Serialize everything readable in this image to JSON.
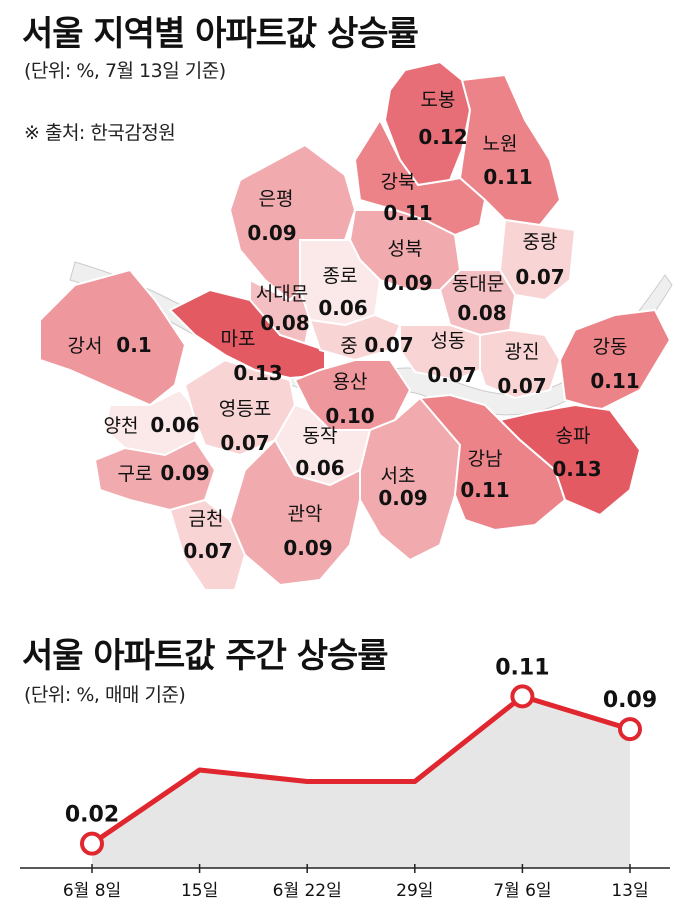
{
  "map_section": {
    "title": "서울 지역별 아파트값 상승률",
    "unit_note": "(단위: %, 7월 13일 기준)",
    "source_note": "※ 출처: 한국감정원"
  },
  "line_section": {
    "title": "서울 아파트값 주간 상승률",
    "unit_note": "(단위: %, 매매 기준)"
  },
  "colors": {
    "line": "#e0262f",
    "area": "#e6e6e6",
    "river": "#eeeeee",
    "map_high": "#e45a63",
    "map_low": "#fbe8e8"
  },
  "chart_data": [
    {
      "type": "heatmap",
      "title": "서울 지역별 아파트값 상승률",
      "unit": "%",
      "districts": [
        {
          "name": "도봉",
          "value": 0.12
        },
        {
          "name": "노원",
          "value": 0.11
        },
        {
          "name": "강북",
          "value": 0.11
        },
        {
          "name": "은평",
          "value": 0.09
        },
        {
          "name": "성북",
          "value": 0.09
        },
        {
          "name": "중랑",
          "value": 0.07
        },
        {
          "name": "종로",
          "value": 0.06
        },
        {
          "name": "동대문",
          "value": 0.08
        },
        {
          "name": "서대문",
          "value": 0.08
        },
        {
          "name": "강서",
          "value": 0.1
        },
        {
          "name": "마포",
          "value": 0.13
        },
        {
          "name": "중",
          "value": 0.07
        },
        {
          "name": "성동",
          "value": 0.07
        },
        {
          "name": "광진",
          "value": 0.07
        },
        {
          "name": "강동",
          "value": 0.11
        },
        {
          "name": "용산",
          "value": 0.1
        },
        {
          "name": "양천",
          "value": 0.06
        },
        {
          "name": "영등포",
          "value": 0.07
        },
        {
          "name": "동작",
          "value": 0.06
        },
        {
          "name": "구로",
          "value": 0.09
        },
        {
          "name": "서초",
          "value": 0.09
        },
        {
          "name": "강남",
          "value": 0.11
        },
        {
          "name": "송파",
          "value": 0.13
        },
        {
          "name": "금천",
          "value": 0.07
        },
        {
          "name": "관악",
          "value": 0.09
        }
      ]
    },
    {
      "type": "line",
      "title": "서울 아파트값 주간 상승률",
      "categories": [
        "6월 8일",
        "15일",
        "6월 22일",
        "29일",
        "7월 6일",
        "13일"
      ],
      "series": [
        {
          "values": [
            0.02,
            0.065,
            0.058,
            0.058,
            0.11,
            0.09
          ]
        }
      ],
      "point_labels": [
        {
          "index": 0,
          "text": "0.02"
        },
        {
          "index": 4,
          "text": "0.11"
        },
        {
          "index": 5,
          "text": "0.09"
        }
      ],
      "ylim": [
        0.01,
        0.12
      ],
      "grid": false
    }
  ]
}
